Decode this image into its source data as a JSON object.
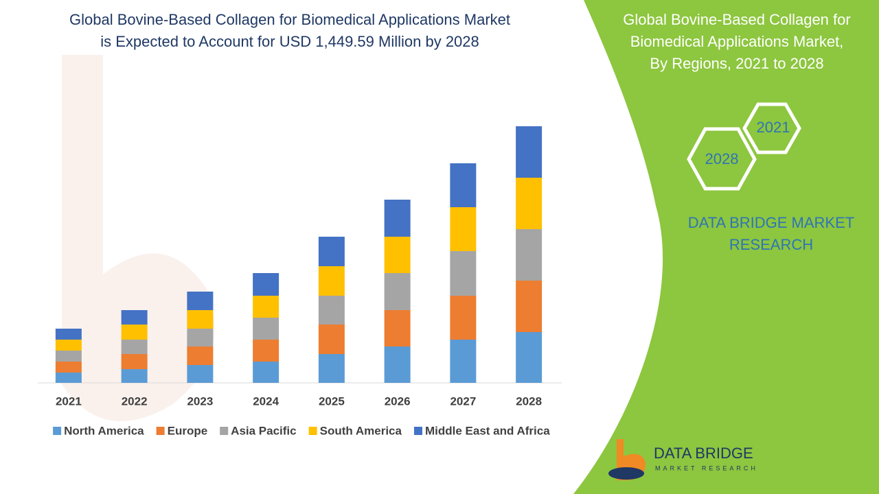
{
  "chart_data": {
    "type": "bar",
    "stacked": true,
    "title": [
      "Global Bovine-Based Collagen for Biomedical Applications Market",
      "is Expected to Account for USD 1,449.59 Million by 2028"
    ],
    "categories": [
      "2021",
      "2022",
      "2023",
      "2024",
      "2025",
      "2026",
      "2027",
      "2028"
    ],
    "series": [
      {
        "name": "North America",
        "color": "#5b9bd5",
        "values": [
          15,
          20,
          26,
          31,
          42,
          53,
          63,
          74
        ]
      },
      {
        "name": "Europe",
        "color": "#ed7d31",
        "values": [
          16,
          22,
          27,
          32,
          43,
          53,
          64,
          75
        ]
      },
      {
        "name": "Asia Pacific",
        "color": "#a5a5a5",
        "values": [
          16,
          21,
          26,
          32,
          42,
          54,
          65,
          75
        ]
      },
      {
        "name": "South America",
        "color": "#ffc000",
        "values": [
          16,
          22,
          27,
          32,
          43,
          53,
          64,
          75
        ]
      },
      {
        "name": "Middle East and Africa",
        "color": "#4472c4",
        "values": [
          16,
          21,
          27,
          33,
          43,
          54,
          64,
          75
        ]
      }
    ],
    "legend": "bottom"
  },
  "panel": {
    "title": [
      "Global Bovine-Based Collagen for",
      "Biomedical Applications Market,",
      "By Regions, 2021 to 2028"
    ],
    "hex_start": "2021",
    "hex_end": "2028",
    "brand": [
      "DATA BRIDGE MARKET",
      "RESEARCH"
    ],
    "logo_name": "DATA BRIDGE",
    "logo_sub": "MARKET RESEARCH"
  }
}
